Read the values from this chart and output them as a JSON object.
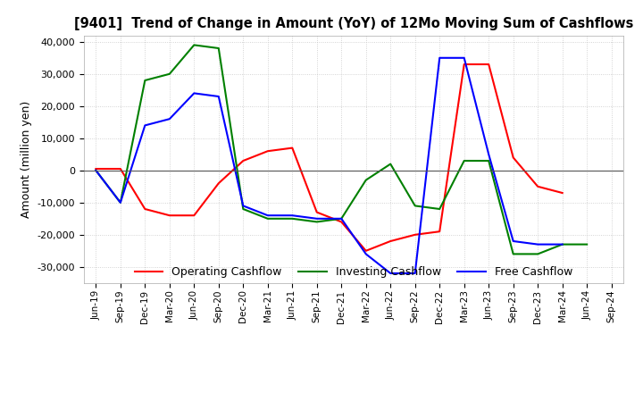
{
  "title": "[9401]  Trend of Change in Amount (YoY) of 12Mo Moving Sum of Cashflows",
  "ylabel": "Amount (million yen)",
  "ylim": [
    -35000,
    42000
  ],
  "yticks": [
    -30000,
    -20000,
    -10000,
    0,
    10000,
    20000,
    30000,
    40000
  ],
  "x_labels": [
    "Jun-19",
    "Sep-19",
    "Dec-19",
    "Mar-20",
    "Jun-20",
    "Sep-20",
    "Dec-20",
    "Mar-21",
    "Jun-21",
    "Sep-21",
    "Dec-21",
    "Mar-22",
    "Jun-22",
    "Sep-22",
    "Dec-22",
    "Mar-23",
    "Jun-23",
    "Sep-23",
    "Dec-23",
    "Mar-24",
    "Jun-24",
    "Sep-24"
  ],
  "operating": [
    500,
    500,
    -12000,
    -14000,
    -14000,
    -4000,
    3000,
    6000,
    7000,
    -13000,
    -16000,
    -25000,
    -22000,
    -20000,
    -19000,
    33000,
    33000,
    4000,
    -5000,
    -7000,
    null,
    null
  ],
  "investing": [
    0,
    -10000,
    28000,
    30000,
    39000,
    38000,
    -12000,
    -15000,
    -15000,
    -16000,
    -15000,
    -3000,
    2000,
    -11000,
    -12000,
    3000,
    3000,
    -26000,
    -26000,
    -23000,
    -23000,
    null
  ],
  "free": [
    0,
    -10000,
    14000,
    16000,
    24000,
    23000,
    -11000,
    -14000,
    -14000,
    -15000,
    -15000,
    -26000,
    -32000,
    -32000,
    35000,
    35000,
    5000,
    -22000,
    -23000,
    -23000,
    null,
    null
  ],
  "operating_color": "#ff0000",
  "investing_color": "#008000",
  "free_color": "#0000ff",
  "bg_color": "#ffffff",
  "grid_color": "#c8c8c8"
}
